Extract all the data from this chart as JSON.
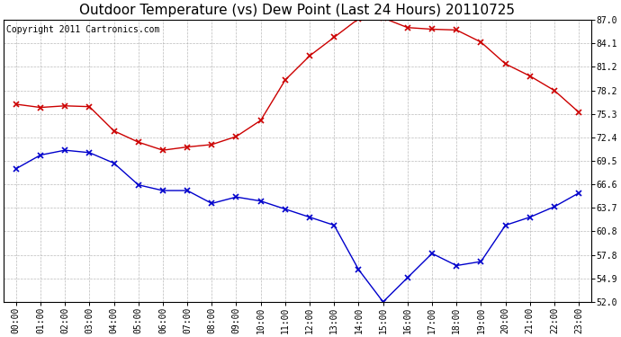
{
  "title": "Outdoor Temperature (vs) Dew Point (Last 24 Hours) 20110725",
  "copyright": "Copyright 2011 Cartronics.com",
  "x_labels": [
    "00:00",
    "01:00",
    "02:00",
    "03:00",
    "04:00",
    "05:00",
    "06:00",
    "07:00",
    "08:00",
    "09:00",
    "10:00",
    "11:00",
    "12:00",
    "13:00",
    "14:00",
    "15:00",
    "16:00",
    "17:00",
    "18:00",
    "19:00",
    "20:00",
    "21:00",
    "22:00",
    "23:00"
  ],
  "temp_values": [
    76.5,
    76.1,
    76.3,
    76.2,
    73.2,
    71.8,
    70.8,
    71.2,
    71.5,
    72.5,
    74.5,
    79.5,
    82.5,
    84.8,
    87.1,
    87.2,
    86.0,
    85.8,
    85.7,
    84.2,
    81.5,
    80.0,
    78.2,
    75.5
  ],
  "dew_values": [
    68.5,
    70.2,
    70.8,
    70.5,
    69.2,
    66.5,
    65.8,
    65.8,
    64.2,
    65.0,
    64.5,
    63.5,
    62.5,
    61.5,
    56.0,
    52.0,
    55.0,
    58.0,
    56.5,
    57.0,
    61.5,
    62.5,
    63.8,
    65.5
  ],
  "temp_color": "#cc0000",
  "dew_color": "#0000cc",
  "bg_color": "#ffffff",
  "grid_color": "#aaaaaa",
  "ytick_labels": [
    "52.0",
    "54.9",
    "57.8",
    "60.8",
    "63.7",
    "66.6",
    "69.5",
    "72.4",
    "75.3",
    "78.2",
    "81.2",
    "84.1",
    "87.0"
  ],
  "ytick_values": [
    52.0,
    54.9,
    57.8,
    60.8,
    63.7,
    66.6,
    69.5,
    72.4,
    75.3,
    78.2,
    81.2,
    84.1,
    87.0
  ],
  "ymin": 52.0,
  "ymax": 87.0,
  "title_fontsize": 11,
  "tick_fontsize": 7,
  "copyright_fontsize": 7
}
